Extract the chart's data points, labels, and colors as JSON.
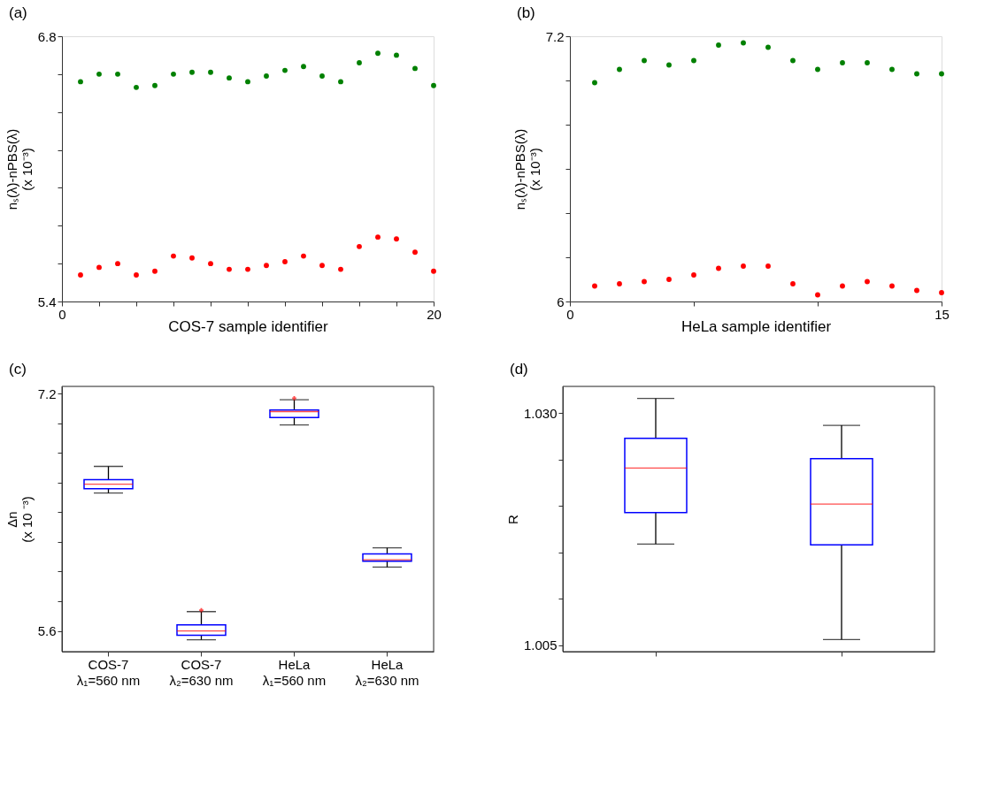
{
  "chart_data": [
    {
      "type": "scatter",
      "title": "(a)",
      "xlabel": "COS-7 sample identifier",
      "ylabel": "nₛ(λ)-nPBS(λ) (x 10⁻³)",
      "marker": "circle",
      "x": [
        1,
        2,
        3,
        4,
        5,
        6,
        7,
        8,
        9,
        10,
        11,
        12,
        13,
        14,
        15,
        16,
        17,
        18,
        19,
        20
      ],
      "series": [
        {
          "color": "#008000",
          "values": [
            6.56,
            6.6,
            6.6,
            6.53,
            6.54,
            6.6,
            6.61,
            6.61,
            6.58,
            6.56,
            6.59,
            6.62,
            6.64,
            6.59,
            6.56,
            6.66,
            6.71,
            6.7,
            6.63,
            6.54
          ]
        },
        {
          "color": "#ff0000",
          "values": [
            5.54,
            5.58,
            5.6,
            5.54,
            5.56,
            5.64,
            5.63,
            5.6,
            5.57,
            5.57,
            5.59,
            5.61,
            5.64,
            5.59,
            5.57,
            5.69,
            5.74,
            5.73,
            5.66,
            5.56
          ]
        }
      ],
      "xlim": [
        0,
        20
      ],
      "xticks": [
        0,
        {
          "value": 2,
          "label": null
        },
        {
          "value": 4,
          "label": null
        },
        {
          "value": 6,
          "label": null
        },
        {
          "value": 8,
          "label": null
        },
        {
          "value": 10,
          "label": null
        },
        {
          "value": 12,
          "label": null
        },
        {
          "value": 14,
          "label": null
        },
        {
          "value": 16,
          "label": null
        },
        {
          "value": 18,
          "label": null
        },
        20
      ],
      "ylim": [
        5.4,
        6.8
      ],
      "yticks": [
        5.4,
        {
          "value": 5.6,
          "label": null
        },
        {
          "value": 5.8,
          "label": null
        },
        {
          "value": 6.0,
          "label": null
        },
        {
          "value": 6.2,
          "label": null
        },
        {
          "value": 6.4,
          "label": null
        },
        {
          "value": 6.6,
          "label": null
        },
        6.8
      ]
    },
    {
      "type": "scatter",
      "title": "(b)",
      "xlabel": "HeLa sample identifier",
      "ylabel": "nₛ(λ)-nPBS(λ) (x 10⁻³)",
      "marker": "circle",
      "x": [
        1,
        2,
        3,
        4,
        5,
        6,
        7,
        8,
        9,
        10,
        11,
        12,
        13,
        14,
        15
      ],
      "series": [
        {
          "color": "#008000",
          "values": [
            6.99,
            7.05,
            7.09,
            7.07,
            7.09,
            7.16,
            7.17,
            7.15,
            7.09,
            7.05,
            7.08,
            7.08,
            7.05,
            7.03,
            7.03
          ]
        },
        {
          "color": "#ff0000",
          "values": [
            6.07,
            6.08,
            6.09,
            6.1,
            6.12,
            6.15,
            6.16,
            6.16,
            6.08,
            6.03,
            6.07,
            6.09,
            6.07,
            6.05,
            6.04
          ]
        }
      ],
      "xlim": [
        0,
        15
      ],
      "xticks": [
        0,
        {
          "value": 5,
          "label": null
        },
        {
          "value": 10,
          "label": null
        },
        15
      ],
      "ylim": [
        6,
        7.2
      ],
      "yticks": [
        6,
        {
          "value": 6.2,
          "label": null
        },
        {
          "value": 6.4,
          "label": null
        },
        {
          "value": 6.6,
          "label": null
        },
        {
          "value": 6.8,
          "label": null
        },
        {
          "value": 7.0,
          "label": null
        },
        7.2
      ]
    },
    {
      "type": "box",
      "title": "(c)",
      "ylabel": "Δn (x 10 ⁻³)",
      "categories": [
        "COS-7\nλ₁=560 nm",
        "COS-7\nλ₂=630 nm",
        "HeLa\nλ₁=560 nm",
        "HeLa\nλ₂=630 nm"
      ],
      "series": [
        {
          "color": "#0000ff",
          "boxes": [
            {
              "low": 6.53,
              "q1": 6.56,
              "median": 6.59,
              "q3": 6.62,
              "high": 6.71
            },
            {
              "low": 5.54,
              "q1": 5.57,
              "median": 5.6,
              "q3": 5.64,
              "high": 5.73,
              "outliers": [
                5.74
              ]
            },
            {
              "low": 6.99,
              "q1": 7.04,
              "median": 7.08,
              "q3": 7.09,
              "high": 7.16,
              "outliers": [
                7.17
              ]
            },
            {
              "low": 6.03,
              "q1": 6.07,
              "median": 6.08,
              "q3": 6.12,
              "high": 6.16
            }
          ]
        }
      ],
      "ylim": [
        5.46,
        7.25
      ],
      "yticks": [
        5.6,
        {
          "value": 5.8,
          "label": null
        },
        {
          "value": 6.0,
          "label": null
        },
        {
          "value": 6.2,
          "label": null
        },
        {
          "value": 6.4,
          "label": null
        },
        {
          "value": 6.6,
          "label": null
        },
        {
          "value": 6.8,
          "label": null
        },
        {
          "value": 7.0,
          "label": null
        },
        7.2
      ]
    },
    {
      "type": "box",
      "title": "(d)",
      "ylabel": "R",
      "categories": [
        null,
        null
      ],
      "series": [
        {
          "color": "#0000ff",
          "boxes": [
            {
              "low": 1.0159,
              "q1": 1.0193,
              "median": 1.0241,
              "q3": 1.0273,
              "high": 1.0316
            },
            {
              "low": 1.0056,
              "q1": 1.0158,
              "median": 1.0202,
              "q3": 1.0251,
              "high": 1.0287
            }
          ]
        }
      ],
      "ylim": [
        1.0043,
        1.0329
      ],
      "yticks": [
        {
          "value": 1.005,
          "label": "1.005"
        },
        {
          "value": 1.01,
          "label": null
        },
        {
          "value": 1.015,
          "label": null
        },
        {
          "value": 1.02,
          "label": null
        },
        {
          "value": 1.025,
          "label": null
        },
        {
          "value": 1.03,
          "label": "1.030"
        }
      ]
    }
  ]
}
